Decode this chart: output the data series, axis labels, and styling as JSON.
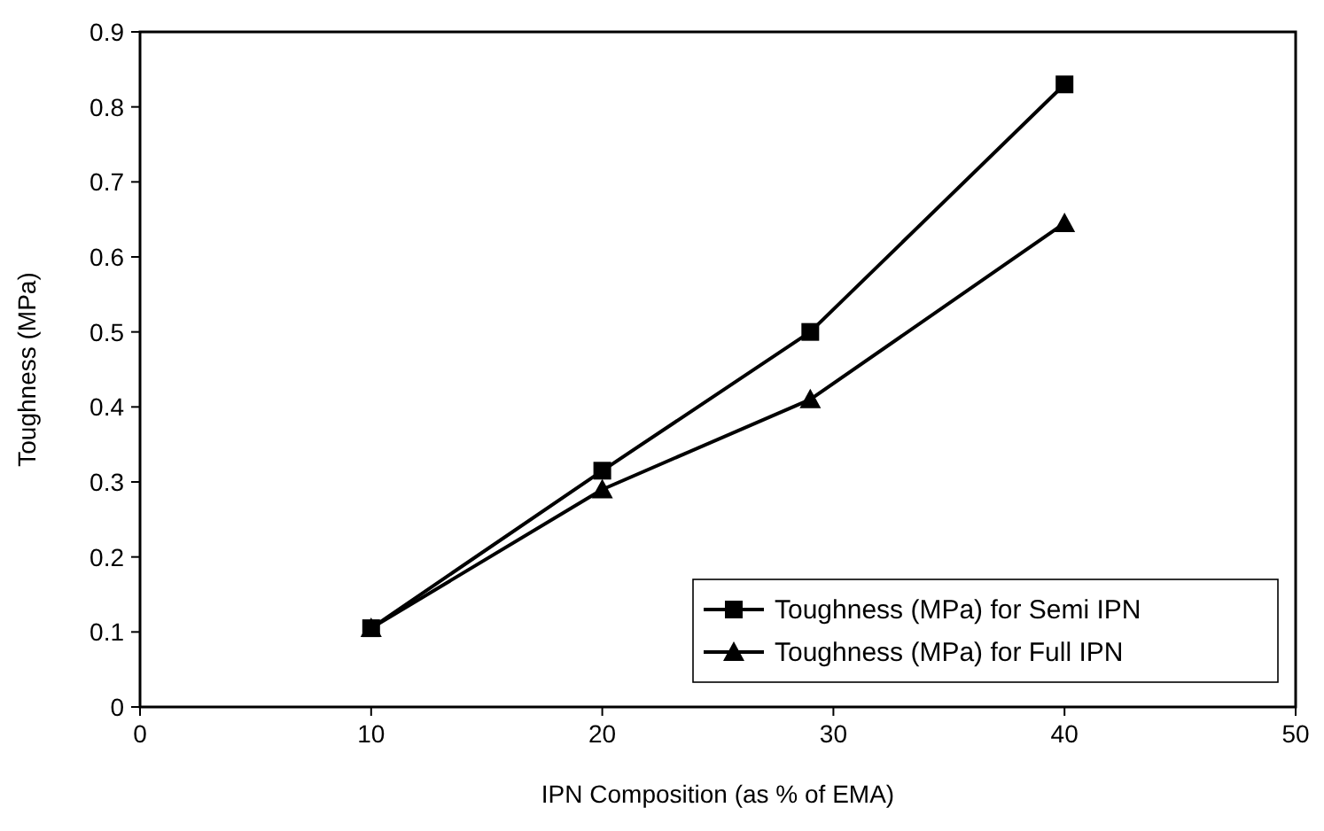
{
  "chart_data": {
    "type": "line",
    "xlabel": "IPN Composition (as % of EMA)",
    "ylabel": "Toughness (MPa)",
    "xlim": [
      0,
      50
    ],
    "xticks": [
      0,
      10,
      20,
      30,
      40,
      50
    ],
    "ylim": [
      0,
      0.9
    ],
    "yticks": [
      0,
      0.1,
      0.2,
      0.3,
      0.4,
      0.5,
      0.6,
      0.7,
      0.8,
      0.9
    ],
    "grid": false,
    "legend": "bottom right",
    "line_style": "solid",
    "series": [
      {
        "name": "Toughness (MPa) for Semi IPN",
        "color": "#000000",
        "marker": "square",
        "x": [
          10,
          20,
          29,
          40
        ],
        "values": [
          0.105,
          0.315,
          0.5,
          0.83
        ]
      },
      {
        "name": "Toughness (MPa) for Full IPN",
        "color": "#000000",
        "marker": "triangle",
        "x": [
          10,
          20,
          29,
          40
        ],
        "values": [
          0.105,
          0.29,
          0.41,
          0.645
        ]
      }
    ]
  }
}
